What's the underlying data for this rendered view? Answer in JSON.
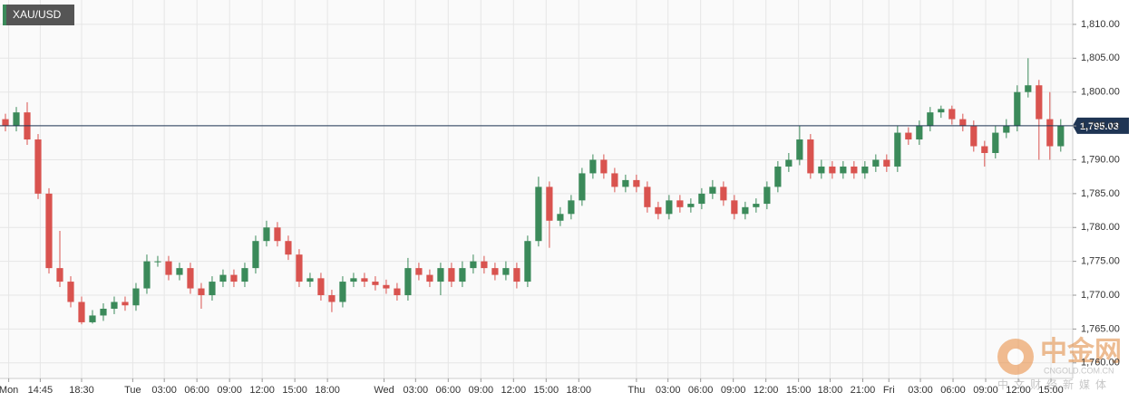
{
  "chart_data": {
    "type": "candlestick",
    "title": "XAU/USD",
    "x": [
      0.5,
      1.5,
      2.5,
      3.5,
      4.5,
      5.5,
      6.5,
      7.5,
      8.5,
      9.5,
      10.5,
      11.5,
      12.5,
      13.5,
      14.5,
      15.5,
      16.5,
      17.5,
      18.5,
      19.5,
      20.5,
      21.5,
      22.5,
      23.5,
      24.5,
      25.5,
      26.5,
      27.5,
      28.5,
      29.5,
      30.5,
      31.5,
      32.5,
      33.5,
      34.5,
      35.5,
      36.5,
      37.5,
      38.5,
      39.5,
      40.5,
      41.5,
      42.5,
      43.5,
      44.5,
      45.5,
      46.5,
      47.5,
      48.5,
      49.5,
      50.5,
      51.5,
      52.5,
      53.5,
      54.5,
      55.5,
      56.5,
      57.5,
      58.5,
      59.5,
      60.5,
      61.5,
      62.5,
      63.5,
      64.5,
      65.5,
      66.5,
      67.5,
      68.5,
      69.5,
      70.5,
      71.5,
      72.5,
      73.5,
      74.5,
      75.5,
      76.5,
      77.5,
      78.5,
      79.5,
      80.5,
      81.5,
      82.5,
      83.5,
      84.5,
      85.5,
      86.5,
      87.5,
      88.5,
      89.5,
      90.5,
      91.5,
      92.5,
      93.5,
      94.5,
      95.5,
      96.5,
      97.5
    ],
    "open": [
      1796,
      1795,
      1797,
      1793,
      1785,
      1774,
      1772,
      1769,
      1766,
      1767,
      1768,
      1769,
      1768.5,
      1771,
      1775,
      1775,
      1773,
      1774,
      1771,
      1770,
      1772,
      1773,
      1772,
      1774,
      1778,
      1780,
      1778,
      1776,
      1772,
      1772.5,
      1770,
      1769,
      1772,
      1772.5,
      1772,
      1771.5,
      1771,
      1770,
      1774,
      1773,
      1772,
      1774,
      1772,
      1774,
      1775,
      1774,
      1773,
      1774,
      1772,
      1778,
      1786,
      1781,
      1782,
      1784,
      1788,
      1790,
      1788,
      1786,
      1787,
      1786,
      1783,
      1782,
      1784,
      1783,
      1783.5,
      1785,
      1786,
      1784,
      1782,
      1783,
      1783.5,
      1786,
      1789,
      1790,
      1793,
      1788,
      1789,
      1788,
      1789,
      1788,
      1789,
      1790,
      1789,
      1794,
      1793,
      1795,
      1797,
      1797.5,
      1796,
      1795,
      1792,
      1791,
      1794,
      1795,
      1800,
      1801,
      1796,
      1792
    ],
    "high": [
      1796.8,
      1797.8,
      1798.5,
      1793.8,
      1785.8,
      1779.5,
      1772.8,
      1769.8,
      1767.8,
      1768.8,
      1769.8,
      1769.8,
      1771.8,
      1776,
      1775.8,
      1775.8,
      1774.8,
      1774.8,
      1771.8,
      1772.8,
      1773.8,
      1773.8,
      1774.8,
      1778.8,
      1781,
      1780.8,
      1778.8,
      1776.8,
      1773.3,
      1773.3,
      1770.8,
      1772.8,
      1773.3,
      1773.3,
      1772.8,
      1772.3,
      1771.8,
      1775.5,
      1774.8,
      1773.8,
      1774.8,
      1774.8,
      1775,
      1776,
      1775.8,
      1774.8,
      1775,
      1774.8,
      1778.8,
      1787.5,
      1786.8,
      1783,
      1784.8,
      1788.8,
      1790.8,
      1790.8,
      1788.8,
      1787.8,
      1787.8,
      1786.8,
      1783.8,
      1784.8,
      1784.8,
      1784.3,
      1785.8,
      1787,
      1786.8,
      1784.8,
      1783.8,
      1784.3,
      1786.8,
      1789.8,
      1791,
      1795,
      1793.8,
      1790,
      1789.8,
      1789.8,
      1789.8,
      1789.8,
      1790.8,
      1790.8,
      1795,
      1794.8,
      1795.8,
      1797.8,
      1798,
      1798,
      1796.8,
      1795.8,
      1792.8,
      1795,
      1796,
      1801,
      1805,
      1801.8,
      1800,
      1796
    ],
    "low": [
      1794.2,
      1794.2,
      1792.2,
      1784.2,
      1773.2,
      1771.2,
      1768.2,
      1765.7,
      1765.8,
      1766.2,
      1767.2,
      1767.7,
      1767.7,
      1770.2,
      1774.2,
      1772.2,
      1772.2,
      1770.2,
      1768,
      1769.2,
      1771.2,
      1771.2,
      1771.2,
      1773.2,
      1777.2,
      1777.2,
      1775.2,
      1771.2,
      1771.2,
      1769.2,
      1767.5,
      1768.2,
      1771.2,
      1771.2,
      1770.7,
      1770.2,
      1769.2,
      1769.2,
      1772.2,
      1771.2,
      1770,
      1771.2,
      1771.2,
      1773.2,
      1773.2,
      1772.2,
      1772.2,
      1771,
      1771.2,
      1777.2,
      1777,
      1780.2,
      1781.2,
      1783.2,
      1787.2,
      1787.2,
      1785.2,
      1785.2,
      1785.2,
      1782.2,
      1781.2,
      1781.2,
      1782.2,
      1782.2,
      1782.7,
      1784.2,
      1783.2,
      1781.2,
      1781.2,
      1782.2,
      1782.7,
      1785.2,
      1788.2,
      1789.2,
      1787.2,
      1787.2,
      1787.2,
      1787.2,
      1787.2,
      1787.2,
      1788.2,
      1788.2,
      1788.2,
      1792.2,
      1792.2,
      1794.2,
      1796.2,
      1795.2,
      1794.2,
      1791.2,
      1789,
      1790.2,
      1793.2,
      1794.2,
      1799.2,
      1790,
      1790,
      1791.2
    ],
    "close": [
      1795,
      1797,
      1793,
      1785,
      1774,
      1772,
      1769,
      1766,
      1767,
      1768,
      1769,
      1768.5,
      1771,
      1775,
      1775,
      1773,
      1774,
      1771,
      1770,
      1772,
      1773,
      1772,
      1774,
      1778,
      1780,
      1778,
      1776,
      1772,
      1772.5,
      1770,
      1769,
      1772,
      1772.5,
      1772,
      1771.5,
      1771,
      1770,
      1774,
      1773,
      1772,
      1774,
      1772,
      1774,
      1775,
      1774,
      1773,
      1774,
      1772,
      1778,
      1786,
      1781,
      1782,
      1784,
      1788,
      1790,
      1788,
      1786,
      1787,
      1786,
      1783,
      1782,
      1784,
      1783,
      1783.5,
      1785,
      1786,
      1784,
      1782,
      1783,
      1783.5,
      1786,
      1789,
      1790,
      1793,
      1788,
      1789,
      1788,
      1789,
      1788,
      1789,
      1790,
      1789,
      1794,
      1793,
      1795,
      1797,
      1797.5,
      1796,
      1795,
      1792,
      1791,
      1794,
      1795,
      1800,
      1801,
      1796,
      1792,
      1795.03
    ],
    "up_color": "#3b8a5a",
    "down_color": "#d9534f",
    "current_price": {
      "value": 1795.03,
      "label": "1,795.03"
    },
    "current_price_color": "#1f3554",
    "xlim": [
      0,
      98.6
    ],
    "xticks": [
      {
        "value": 0.8,
        "label": "Mon"
      },
      {
        "value": 3.7,
        "label": "14:45"
      },
      {
        "value": 7.5,
        "label": "18:30"
      },
      {
        "value": 12.2,
        "label": "Tue"
      },
      {
        "value": 15.1,
        "label": "03:00"
      },
      {
        "value": 18.1,
        "label": "06:00"
      },
      {
        "value": 21.1,
        "label": "09:00"
      },
      {
        "value": 24.1,
        "label": "12:00"
      },
      {
        "value": 27.1,
        "label": "15:00"
      },
      {
        "value": 30.1,
        "label": "18:00"
      },
      {
        "value": 35.3,
        "label": "Wed"
      },
      {
        "value": 38.2,
        "label": "03:00"
      },
      {
        "value": 41.2,
        "label": "06:00"
      },
      {
        "value": 44.2,
        "label": "09:00"
      },
      {
        "value": 47.2,
        "label": "12:00"
      },
      {
        "value": 50.2,
        "label": "15:00"
      },
      {
        "value": 53.2,
        "label": "18:00"
      },
      {
        "value": 58.5,
        "label": "Thu"
      },
      {
        "value": 61.4,
        "label": "03:00"
      },
      {
        "value": 64.4,
        "label": "06:00"
      },
      {
        "value": 67.4,
        "label": "09:00"
      },
      {
        "value": 70.4,
        "label": "12:00"
      },
      {
        "value": 73.4,
        "label": "15:00"
      },
      {
        "value": 76.3,
        "label": "18:00"
      },
      {
        "value": 79.3,
        "label": "21:00"
      },
      {
        "value": 81.7,
        "label": "Fri"
      },
      {
        "value": 84.6,
        "label": "03:00"
      },
      {
        "value": 87.6,
        "label": "06:00"
      },
      {
        "value": 90.6,
        "label": "09:00"
      },
      {
        "value": 93.6,
        "label": "12:00"
      },
      {
        "value": 96.6,
        "label": "15:00"
      }
    ],
    "ylim": [
      1757.7,
      1813.6
    ],
    "yticks": [
      {
        "value": 1760,
        "label": "1,760.00"
      },
      {
        "value": 1765,
        "label": "1,765.00"
      },
      {
        "value": 1770,
        "label": "1,770.00"
      },
      {
        "value": 1775,
        "label": "1,775.00"
      },
      {
        "value": 1780,
        "label": "1,780.00"
      },
      {
        "value": 1785,
        "label": "1,785.00"
      },
      {
        "value": 1790,
        "label": "1,790.00"
      },
      {
        "value": 1795,
        "label": "1,795.00"
      },
      {
        "value": 1800,
        "label": "1,800.00"
      },
      {
        "value": 1805,
        "label": "1,805.00"
      },
      {
        "value": 1810,
        "label": "1,810.00"
      }
    ],
    "grid": true
  },
  "watermark": {
    "brand": "中金网",
    "site": "CNGOLD.COM.CN",
    "tagline": "中文财经新媒体"
  }
}
